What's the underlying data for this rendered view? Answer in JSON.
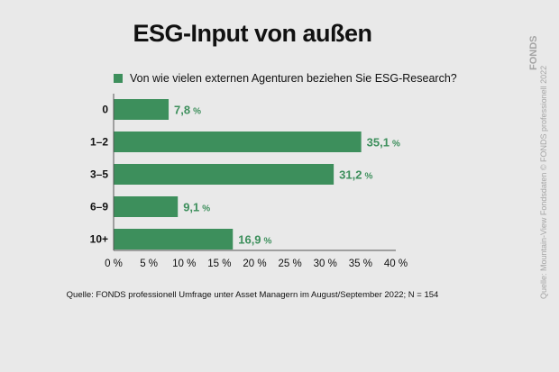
{
  "chart_data": {
    "type": "bar",
    "orientation": "horizontal",
    "title": "ESG-Input von außen",
    "legend": "Von wie vielen externen Agenturen beziehen Sie ESG-Research?",
    "categories": [
      "0",
      "1–2",
      "3–5",
      "6–9",
      "10+"
    ],
    "values": [
      7.8,
      35.1,
      31.2,
      9.1,
      16.9
    ],
    "value_labels": [
      "7,8",
      "35,1",
      "31,2",
      "9,1",
      "16,9"
    ],
    "value_unit": "%",
    "xlim": [
      0,
      40
    ],
    "xticks": [
      "0 %",
      "5 %",
      "10 %",
      "15 %",
      "20 %",
      "25 %",
      "30 %",
      "35 %",
      "40 %"
    ],
    "grid": false,
    "source": "Quelle: FONDS professionell Umfrage unter Asset Managern im August/September 2022; N = 154"
  },
  "side_credit": "Quelle: Mountain-View Fondsdaten   © FONDS professionell 2022",
  "side_brand": "FONDS",
  "colors": {
    "bar": "#3d8f5c",
    "background": "#e9e9e9"
  }
}
